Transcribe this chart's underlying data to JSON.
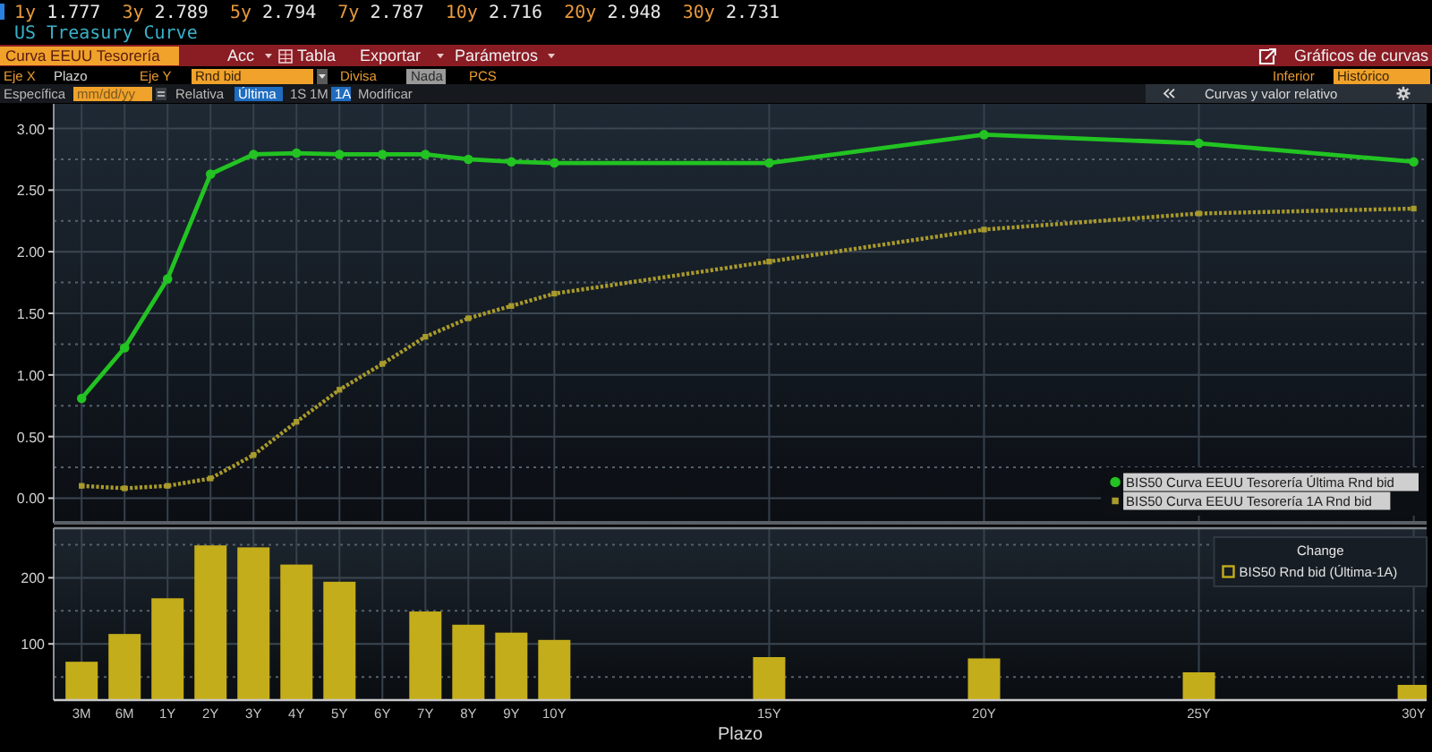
{
  "chart_data": [
    {
      "type": "line",
      "title": "US Treasury Curve",
      "annotations": [
        "1y 1.777 3y 2.789 5y 2.794 7y 2.787 10y 2.716 20y 2.948 30y 2.731",
        "Curva EEUU Tesorería",
        "Acc",
        "Tabla",
        "Exportar",
        "Parámetros",
        "Gráficos de curvas",
        "Eje X",
        "Plazo",
        "Eje Y",
        "Rnd bid",
        "Divisa",
        "Nada",
        "PCS",
        "Inferior",
        "Histórico",
        "Específica",
        "mm/dd/yy",
        "Relativa",
        "Última",
        "1S",
        "1M",
        "1A",
        "Modificar",
        "Curvas y valor relativo"
      ],
      "categories": [
        "3M",
        "6M",
        "1Y",
        "2Y",
        "3Y",
        "4Y",
        "5Y",
        "6Y",
        "7Y",
        "8Y",
        "9Y",
        "10Y",
        null,
        null,
        null,
        null,
        "15Y",
        null,
        null,
        null,
        null,
        "20Y",
        null,
        null,
        null,
        null,
        "25Y",
        null,
        null,
        null,
        null,
        "30Y"
      ],
      "ylim": [
        -0.2,
        3.2
      ],
      "yticks": [
        {
          "value": 0,
          "label": "0.00"
        },
        {
          "value": 0.25,
          "label": null
        },
        {
          "value": 0.5,
          "label": "0.50"
        },
        {
          "value": 0.75,
          "label": null
        },
        {
          "value": 1,
          "label": "1.00"
        },
        {
          "value": 1.25,
          "label": null
        },
        {
          "value": 1.5,
          "label": "1.50"
        },
        {
          "value": 1.75,
          "label": null
        },
        {
          "value": 2,
          "label": "2.00"
        },
        {
          "value": 2.25,
          "label": null
        },
        {
          "value": 2.5,
          "label": "2.50"
        },
        {
          "value": 2.75,
          "label": null
        },
        {
          "value": 3,
          "label": "3.00"
        }
      ],
      "series": [
        {
          "name": "BIS50 Curva EEUU Tesorería Última Rnd bid",
          "color": "#22c322",
          "marker": "circle",
          "line_style": "solid",
          "x": [
            "3M",
            "6M",
            "1Y",
            "2Y",
            "3Y",
            "4Y",
            "5Y",
            "6Y",
            "7Y",
            "8Y",
            "9Y",
            "10Y",
            "15Y",
            "20Y",
            "25Y",
            "30Y"
          ],
          "values": [
            0.81,
            1.22,
            1.78,
            2.63,
            2.79,
            2.8,
            2.79,
            2.79,
            2.79,
            2.75,
            2.73,
            2.72,
            2.72,
            2.95,
            2.88,
            2.73
          ]
        },
        {
          "name": "BIS50 Curva EEUU Tesorería 1A Rnd bid",
          "color": "#a89a2c",
          "marker": "square",
          "line_style": "dotted",
          "x": [
            "3M",
            "6M",
            "1Y",
            "2Y",
            "3Y",
            "4Y",
            "5Y",
            "6Y",
            "7Y",
            "8Y",
            "9Y",
            "10Y",
            "15Y",
            "20Y",
            "25Y",
            "30Y"
          ],
          "values": [
            0.1,
            0.08,
            0.1,
            0.16,
            0.35,
            0.62,
            0.88,
            1.09,
            1.31,
            1.46,
            1.56,
            1.66,
            1.92,
            2.18,
            2.31,
            2.35
          ]
        }
      ],
      "grid": true,
      "legend": "bottom right",
      "tick_labels": "y"
    },
    {
      "type": "bar",
      "xlabel": "Plazo",
      "legend_title": "Change",
      "categories": [
        "3M",
        "6M",
        "1Y",
        "2Y",
        "3Y",
        "4Y",
        "5Y",
        "6Y",
        "7Y",
        "8Y",
        "9Y",
        "10Y",
        null,
        null,
        null,
        null,
        "15Y",
        null,
        null,
        null,
        null,
        "20Y",
        null,
        null,
        null,
        null,
        "25Y",
        null,
        null,
        null,
        null,
        "30Y"
      ],
      "ylim": [
        15,
        275
      ],
      "yticks": [
        {
          "value": 50,
          "label": null
        },
        100,
        {
          "value": 150,
          "label": null
        },
        200,
        {
          "value": 250,
          "label": null
        }
      ],
      "series": [
        {
          "name": "BIS50 Rnd bid (Última-1A)",
          "color": "#c4ad1a",
          "values": [
            73,
            115,
            169,
            249,
            246,
            220,
            194,
            null,
            149,
            129,
            117,
            106,
            null,
            null,
            null,
            null,
            80,
            null,
            null,
            null,
            null,
            78,
            null,
            null,
            null,
            null,
            57,
            null,
            null,
            null,
            null,
            38
          ]
        }
      ],
      "grid": true,
      "legend": "top right"
    }
  ]
}
